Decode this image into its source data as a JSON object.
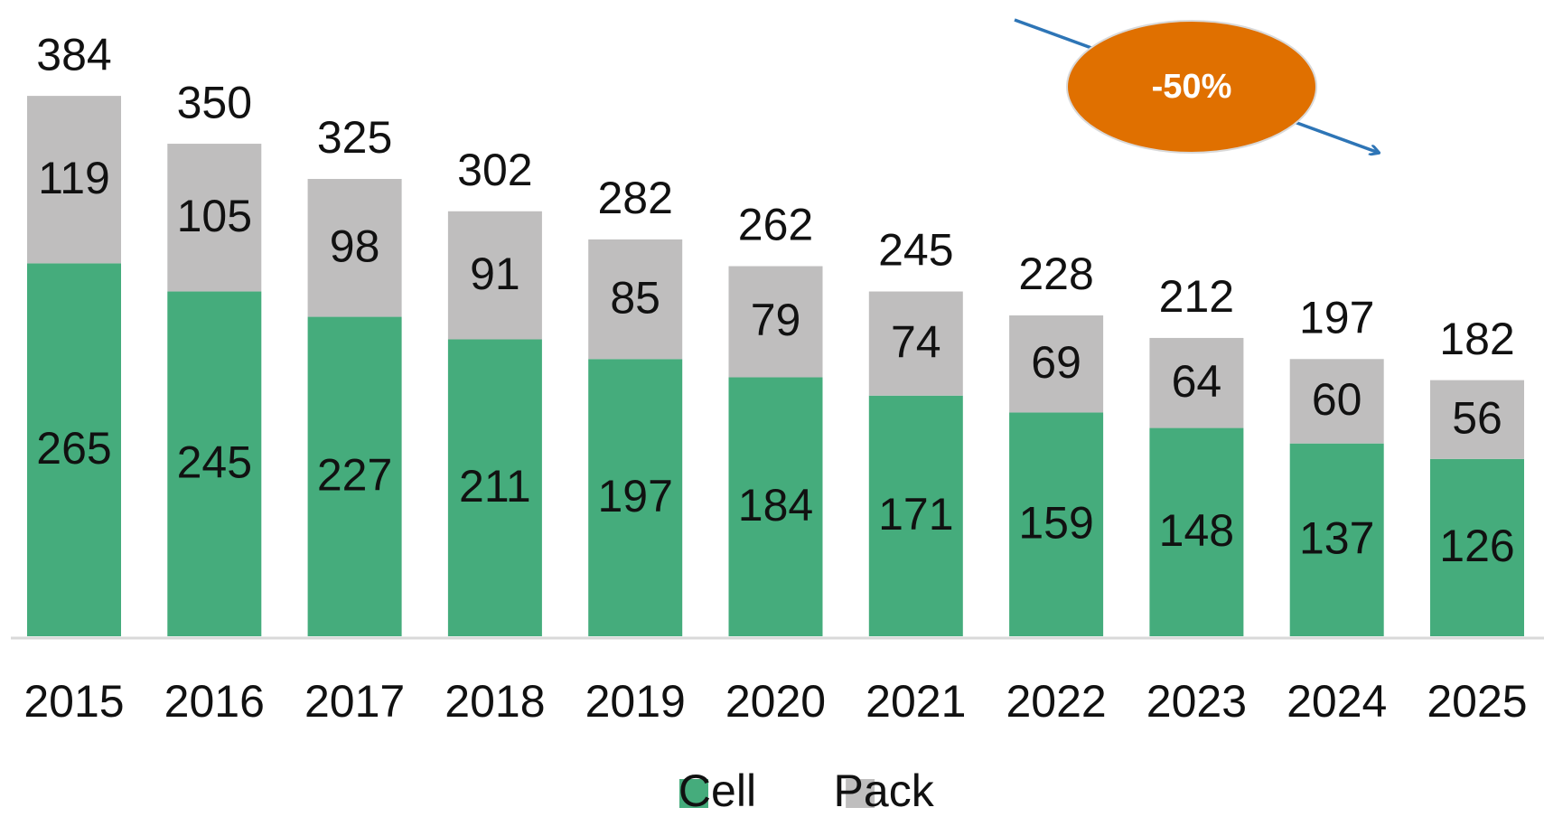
{
  "chart_data": {
    "type": "stacked_bar",
    "categories": [
      "2015",
      "2016",
      "2017",
      "2018",
      "2019",
      "2020",
      "2021",
      "2022",
      "2023",
      "2024",
      "2025"
    ],
    "series": [
      {
        "name": "Cell",
        "color": "#45ac7c",
        "values": [
          265,
          245,
          227,
          211,
          197,
          184,
          171,
          159,
          148,
          137,
          126
        ]
      },
      {
        "name": "Pack",
        "color": "#bfbebe",
        "values": [
          119,
          105,
          98,
          91,
          85,
          79,
          74,
          69,
          64,
          60,
          56
        ]
      }
    ],
    "totals": [
      384,
      350,
      325,
      302,
      282,
      262,
      245,
      228,
      212,
      197,
      182
    ],
    "annotation": {
      "text": "-50%",
      "color": "#e07000",
      "arrow_color": "#2e75b6"
    },
    "legend": "bottom"
  }
}
